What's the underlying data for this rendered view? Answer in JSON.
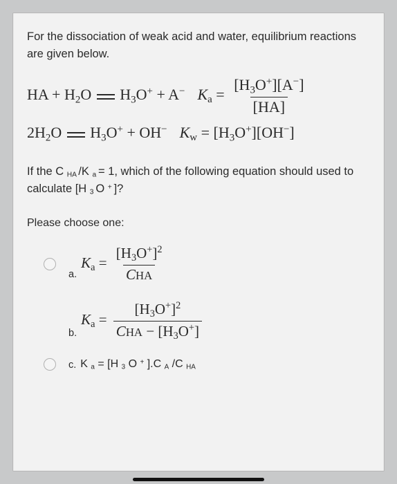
{
  "card": {
    "background_color": "#f2f2f2",
    "border_color": "#b8b8b8"
  },
  "page_background_color": "#c8c9ca",
  "text_color": "#2a2a2a",
  "intro_text": "For the dissociation of weak acid and water, equilibrium reactions are given below.",
  "equations": {
    "eq1_lhs": "HA + H₂O ⇌ H₃O⁺ + A⁻",
    "eq1_k_label": "Kₐ",
    "eq1_numerator": "[H₃O⁺][A⁻]",
    "eq1_denominator": "[HA]",
    "eq2_lhs": "2H₂O ⇌ H₃O⁺ + OH⁻",
    "eq2_k_label": "K_w",
    "eq2_rhs": "[H₃O⁺][OH⁻]"
  },
  "question_text_part1": "If the C ",
  "question_text_sub1": "HA ",
  "question_text_part2": "/K ",
  "question_text_sub2": "a ",
  "question_text_part3": "= 1, which of the following equation should used to calculate [H ",
  "question_text_sub3": "3 ",
  "question_text_part4": "O ",
  "question_text_sup1": "+ ",
  "question_text_part5": "]?",
  "choose_label": "Please choose one:",
  "options": {
    "a": {
      "prefix": "a.",
      "lhs": "Kₐ",
      "numerator": "[H₃O⁺]²",
      "denominator": "CHA"
    },
    "b": {
      "prefix": "b.",
      "lhs": "Kₐ",
      "numerator": "[H₃O⁺]²",
      "denom_left": "CHA",
      "denom_minus": " − ",
      "denom_right": "[H₃O⁺]"
    },
    "c": {
      "prefix": "c.",
      "text": "K a = [H 3 O ⁺ ].C A /C HA"
    }
  },
  "fonts": {
    "body": "Arial",
    "math": "Times New Roman",
    "intro_size_pt": 12,
    "math_size_pt": 16
  }
}
